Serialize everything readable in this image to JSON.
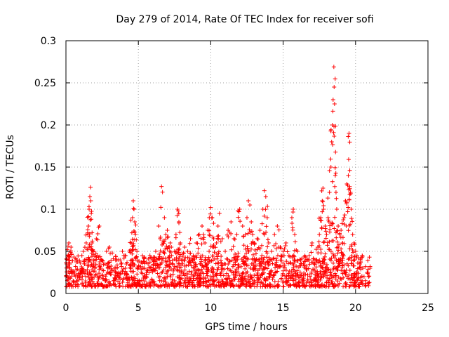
{
  "chart_data": {
    "type": "scatter",
    "title": "Day 279 of 2014, Rate Of TEC Index for receiver sofi",
    "xlabel": "GPS time / hours",
    "ylabel": "ROTI / TECUs",
    "xlim": [
      0,
      25
    ],
    "ylim": [
      0,
      0.3
    ],
    "xticks": [
      0,
      5,
      10,
      15,
      20,
      25
    ],
    "yticks": [
      0,
      0.05,
      0.1,
      0.15,
      0.2,
      0.25,
      0.3
    ],
    "xtick_labels": [
      "0",
      "5",
      "10",
      "15",
      "20",
      "25"
    ],
    "ytick_labels": [
      "0",
      "0.05",
      "0.1",
      "0.15",
      "0.2",
      "0.25",
      "0.3"
    ],
    "grid": true,
    "marker": "+",
    "series": [
      {
        "name": "ROTI",
        "color": "#ff0000",
        "points": [
          [
            0.0,
            0.02
          ],
          [
            0.05,
            0.035
          ],
          [
            0.1,
            0.052
          ],
          [
            0.15,
            0.045
          ],
          [
            0.2,
            0.06
          ],
          [
            0.25,
            0.03
          ],
          [
            0.3,
            0.018
          ],
          [
            0.35,
            0.055
          ],
          [
            0.4,
            0.025
          ],
          [
            0.5,
            0.015
          ],
          [
            0.6,
            0.022
          ],
          [
            0.7,
            0.028
          ],
          [
            0.8,
            0.02
          ],
          [
            0.9,
            0.016
          ],
          [
            1.0,
            0.024
          ],
          [
            1.1,
            0.045
          ],
          [
            1.2,
            0.05
          ],
          [
            1.3,
            0.035
          ],
          [
            1.4,
            0.06
          ],
          [
            1.5,
            0.072
          ],
          [
            1.55,
            0.08
          ],
          [
            1.6,
            0.1
          ],
          [
            1.65,
            0.115
          ],
          [
            1.7,
            0.126
          ],
          [
            1.72,
            0.11
          ],
          [
            1.75,
            0.095
          ],
          [
            1.8,
            0.06
          ],
          [
            1.85,
            0.052
          ],
          [
            1.9,
            0.04
          ],
          [
            2.0,
            0.03
          ],
          [
            2.1,
            0.065
          ],
          [
            2.2,
            0.045
          ],
          [
            2.3,
            0.08
          ],
          [
            2.4,
            0.03
          ],
          [
            2.5,
            0.022
          ],
          [
            2.7,
            0.035
          ],
          [
            2.8,
            0.05
          ],
          [
            2.9,
            0.03
          ],
          [
            3.0,
            0.055
          ],
          [
            3.1,
            0.025
          ],
          [
            3.2,
            0.048
          ],
          [
            3.4,
            0.03
          ],
          [
            3.5,
            0.02
          ],
          [
            3.6,
            0.04
          ],
          [
            3.8,
            0.035
          ],
          [
            3.9,
            0.05
          ],
          [
            4.0,
            0.045
          ],
          [
            4.1,
            0.03
          ],
          [
            4.2,
            0.022
          ],
          [
            4.3,
            0.018
          ],
          [
            4.5,
            0.06
          ],
          [
            4.55,
            0.072
          ],
          [
            4.6,
            0.09
          ],
          [
            4.65,
            0.11
          ],
          [
            4.7,
            0.1
          ],
          [
            4.75,
            0.085
          ],
          [
            4.8,
            0.07
          ],
          [
            4.9,
            0.05
          ],
          [
            5.0,
            0.03
          ],
          [
            5.2,
            0.025
          ],
          [
            5.4,
            0.03
          ],
          [
            5.6,
            0.028
          ],
          [
            5.8,
            0.045
          ],
          [
            6.0,
            0.04
          ],
          [
            6.2,
            0.05
          ],
          [
            6.4,
            0.08
          ],
          [
            6.5,
            0.065
          ],
          [
            6.6,
            0.127
          ],
          [
            6.7,
            0.06
          ],
          [
            6.8,
            0.09
          ],
          [
            6.9,
            0.07
          ],
          [
            7.0,
            0.075
          ],
          [
            7.1,
            0.055
          ],
          [
            7.2,
            0.06
          ],
          [
            7.3,
            0.045
          ],
          [
            7.5,
            0.05
          ],
          [
            7.6,
            0.07
          ],
          [
            7.7,
            0.1
          ],
          [
            7.75,
            0.098
          ],
          [
            7.8,
            0.085
          ],
          [
            7.9,
            0.06
          ],
          [
            8.0,
            0.04
          ],
          [
            8.2,
            0.055
          ],
          [
            8.4,
            0.05
          ],
          [
            8.6,
            0.065
          ],
          [
            8.8,
            0.045
          ],
          [
            9.0,
            0.06
          ],
          [
            9.2,
            0.07
          ],
          [
            9.4,
            0.08
          ],
          [
            9.5,
            0.07
          ],
          [
            9.6,
            0.06
          ],
          [
            9.8,
            0.075
          ],
          [
            9.9,
            0.09
          ],
          [
            10.0,
            0.102
          ],
          [
            10.1,
            0.09
          ],
          [
            10.2,
            0.065
          ],
          [
            10.4,
            0.06
          ],
          [
            10.5,
            0.08
          ],
          [
            10.6,
            0.095
          ],
          [
            10.8,
            0.065
          ],
          [
            11.0,
            0.05
          ],
          [
            11.2,
            0.075
          ],
          [
            11.4,
            0.085
          ],
          [
            11.6,
            0.065
          ],
          [
            11.8,
            0.07
          ],
          [
            12.0,
            0.1
          ],
          [
            12.2,
            0.08
          ],
          [
            12.4,
            0.07
          ],
          [
            12.5,
            0.09
          ],
          [
            12.6,
            0.11
          ],
          [
            12.7,
            0.105
          ],
          [
            12.8,
            0.085
          ],
          [
            12.9,
            0.07
          ],
          [
            13.0,
            0.06
          ],
          [
            13.2,
            0.065
          ],
          [
            13.4,
            0.075
          ],
          [
            13.6,
            0.1
          ],
          [
            13.7,
            0.122
          ],
          [
            13.8,
            0.115
          ],
          [
            13.9,
            0.09
          ],
          [
            14.0,
            0.06
          ],
          [
            14.2,
            0.05
          ],
          [
            14.4,
            0.07
          ],
          [
            14.6,
            0.08
          ],
          [
            14.8,
            0.055
          ],
          [
            15.0,
            0.05
          ],
          [
            15.2,
            0.06
          ],
          [
            15.4,
            0.045
          ],
          [
            15.6,
            0.09
          ],
          [
            15.7,
            0.1
          ],
          [
            15.8,
            0.07
          ],
          [
            16.0,
            0.05
          ],
          [
            16.2,
            0.04
          ],
          [
            16.4,
            0.035
          ],
          [
            16.6,
            0.03
          ],
          [
            16.8,
            0.045
          ],
          [
            17.0,
            0.06
          ],
          [
            17.2,
            0.04
          ],
          [
            17.4,
            0.055
          ],
          [
            17.5,
            0.07
          ],
          [
            17.6,
            0.09
          ],
          [
            17.7,
            0.11
          ],
          [
            17.75,
            0.125
          ],
          [
            17.8,
            0.1
          ],
          [
            17.9,
            0.08
          ],
          [
            18.0,
            0.07
          ],
          [
            18.1,
            0.09
          ],
          [
            18.2,
            0.12
          ],
          [
            18.3,
            0.15
          ],
          [
            18.35,
            0.18
          ],
          [
            18.4,
            0.2
          ],
          [
            18.45,
            0.23
          ],
          [
            18.5,
            0.269
          ],
          [
            18.52,
            0.245
          ],
          [
            18.55,
            0.225
          ],
          [
            18.6,
            0.14
          ],
          [
            18.65,
            0.12
          ],
          [
            18.7,
            0.1
          ],
          [
            18.8,
            0.08
          ],
          [
            18.9,
            0.07
          ],
          [
            19.0,
            0.075
          ],
          [
            19.1,
            0.06
          ],
          [
            19.2,
            0.09
          ],
          [
            19.3,
            0.11
          ],
          [
            19.4,
            0.13
          ],
          [
            19.5,
            0.14
          ],
          [
            19.55,
            0.19
          ],
          [
            19.6,
            0.146
          ],
          [
            19.65,
            0.12
          ],
          [
            19.7,
            0.1
          ],
          [
            19.8,
            0.07
          ],
          [
            19.9,
            0.06
          ],
          [
            20.0,
            0.05
          ],
          [
            20.1,
            0.045
          ],
          [
            20.3,
            0.035
          ],
          [
            20.5,
            0.03
          ],
          [
            20.7,
            0.032
          ],
          [
            20.8,
            0.025
          ],
          [
            20.9,
            0.02
          ],
          [
            21.0,
            0.03
          ]
        ]
      }
    ],
    "background_band": {
      "description": "dense band of points between 0.01 and ~0.04 across the whole time range",
      "x_range": [
        0,
        21.05
      ],
      "y_range": [
        0.008,
        0.045
      ]
    }
  }
}
